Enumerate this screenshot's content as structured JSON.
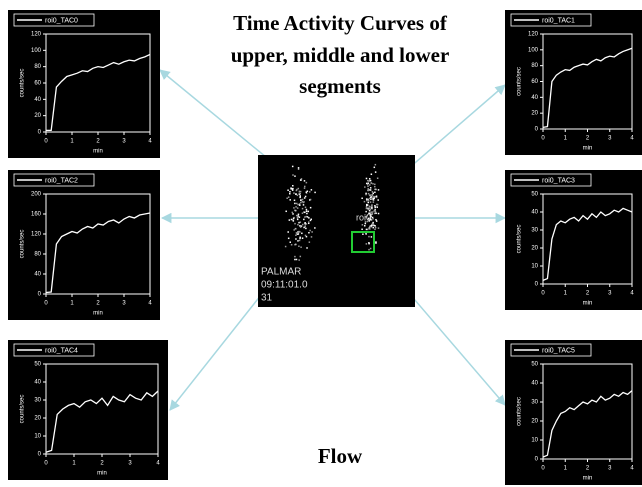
{
  "figure": {
    "title_lines": [
      "Time Activity  Curves of",
      "upper, middle  and lower",
      "segments"
    ],
    "footer": "Flow",
    "image_labels": [
      "PALMAR",
      "09:11:01.0",
      "31"
    ],
    "roi_label": "roi0"
  },
  "chart_data": [
    {
      "type": "line",
      "xlabel": "min",
      "ylabel": "counts/sec",
      "x": [
        0,
        0.2,
        0.4,
        0.6,
        0.8,
        1,
        1.2,
        1.4,
        1.6,
        1.8,
        2,
        2.2,
        2.4,
        2.6,
        2.8,
        3,
        3.2,
        3.4,
        3.6,
        3.8,
        4
      ],
      "series": [
        {
          "name": "roi0_TAC0",
          "color": "#ffffff",
          "values": [
            2,
            2,
            55,
            62,
            68,
            70,
            72,
            75,
            74,
            78,
            80,
            79,
            82,
            85,
            83,
            86,
            88,
            87,
            90,
            92,
            95
          ]
        }
      ],
      "xlim": [
        0,
        4
      ],
      "xticks": [
        0,
        1,
        2,
        3,
        4
      ],
      "ylim": [
        0,
        120
      ],
      "yticks": [
        0,
        20,
        40,
        60,
        80,
        100,
        120
      ]
    },
    {
      "type": "line",
      "xlabel": "min",
      "ylabel": "counts/sec",
      "x": [
        0,
        0.2,
        0.4,
        0.6,
        0.8,
        1,
        1.2,
        1.4,
        1.6,
        1.8,
        2,
        2.2,
        2.4,
        2.6,
        2.8,
        3,
        3.2,
        3.4,
        3.6,
        3.8,
        4
      ],
      "series": [
        {
          "name": "roi0_TAC2",
          "color": "#ffffff",
          "values": [
            3,
            4,
            100,
            115,
            120,
            125,
            122,
            130,
            135,
            132,
            140,
            138,
            145,
            148,
            142,
            150,
            155,
            152,
            158,
            160,
            162
          ]
        }
      ],
      "xlim": [
        0,
        4
      ],
      "xticks": [
        0,
        1,
        2,
        3,
        4
      ],
      "ylim": [
        0,
        200
      ],
      "yticks": [
        0,
        40,
        80,
        120,
        160,
        200
      ]
    },
    {
      "type": "line",
      "xlabel": "min",
      "ylabel": "counts/sec",
      "x": [
        0,
        0.2,
        0.4,
        0.6,
        0.8,
        1,
        1.2,
        1.4,
        1.6,
        1.8,
        2,
        2.2,
        2.4,
        2.6,
        2.8,
        3,
        3.2,
        3.4,
        3.6,
        3.8,
        4
      ],
      "series": [
        {
          "name": "roi0_TAC4",
          "color": "#ffffff",
          "values": [
            1,
            2,
            22,
            25,
            27,
            28,
            26,
            29,
            30,
            28,
            31,
            27,
            32,
            30,
            29,
            33,
            31,
            30,
            34,
            32,
            35
          ]
        }
      ],
      "xlim": [
        0,
        4
      ],
      "xticks": [
        0,
        1,
        2,
        3,
        4
      ],
      "ylim": [
        0,
        50
      ],
      "yticks": [
        0,
        10,
        20,
        30,
        40,
        50
      ]
    },
    {
      "type": "line",
      "xlabel": "min",
      "ylabel": "counts/sec",
      "x": [
        0,
        0.2,
        0.4,
        0.6,
        0.8,
        1,
        1.2,
        1.4,
        1.6,
        1.8,
        2,
        2.2,
        2.4,
        2.6,
        2.8,
        3,
        3.2,
        3.4,
        3.6,
        3.8,
        4
      ],
      "series": [
        {
          "name": "roi0_TAC1",
          "color": "#ffffff",
          "values": [
            2,
            3,
            60,
            68,
            72,
            75,
            74,
            78,
            80,
            82,
            81,
            85,
            88,
            86,
            90,
            92,
            91,
            95,
            98,
            100,
            102
          ]
        }
      ],
      "xlim": [
        0,
        4
      ],
      "xticks": [
        0,
        1,
        2,
        3,
        4
      ],
      "ylim": [
        0,
        120
      ],
      "yticks": [
        0,
        20,
        40,
        60,
        80,
        100,
        120
      ]
    },
    {
      "type": "line",
      "xlabel": "min",
      "ylabel": "counts/sec",
      "x": [
        0,
        0.2,
        0.4,
        0.6,
        0.8,
        1,
        1.2,
        1.4,
        1.6,
        1.8,
        2,
        2.2,
        2.4,
        2.6,
        2.8,
        3,
        3.2,
        3.4,
        3.6,
        3.8,
        4
      ],
      "series": [
        {
          "name": "roi0_TAC3",
          "color": "#ffffff",
          "values": [
            2,
            3,
            25,
            33,
            35,
            34,
            36,
            37,
            35,
            38,
            36,
            39,
            37,
            40,
            38,
            39,
            41,
            40,
            42,
            41,
            40
          ]
        }
      ],
      "xlim": [
        0,
        4
      ],
      "xticks": [
        0,
        1,
        2,
        3,
        4
      ],
      "ylim": [
        0,
        50
      ],
      "yticks": [
        0,
        10,
        20,
        30,
        40,
        50
      ]
    },
    {
      "type": "line",
      "xlabel": "min",
      "ylabel": "counts/sec",
      "x": [
        0,
        0.2,
        0.4,
        0.6,
        0.8,
        1,
        1.2,
        1.4,
        1.6,
        1.8,
        2,
        2.2,
        2.4,
        2.6,
        2.8,
        3,
        3.2,
        3.4,
        3.6,
        3.8,
        4
      ],
      "series": [
        {
          "name": "roi0_TAC5",
          "color": "#ffffff",
          "values": [
            1,
            2,
            15,
            20,
            24,
            25,
            27,
            26,
            28,
            30,
            29,
            31,
            30,
            33,
            31,
            32,
            34,
            33,
            35,
            34,
            36
          ]
        }
      ],
      "xlim": [
        0,
        4
      ],
      "xticks": [
        0,
        1,
        2,
        3,
        4
      ],
      "ylim": [
        0,
        50
      ],
      "yticks": [
        0,
        10,
        20,
        30,
        40,
        50
      ]
    }
  ]
}
